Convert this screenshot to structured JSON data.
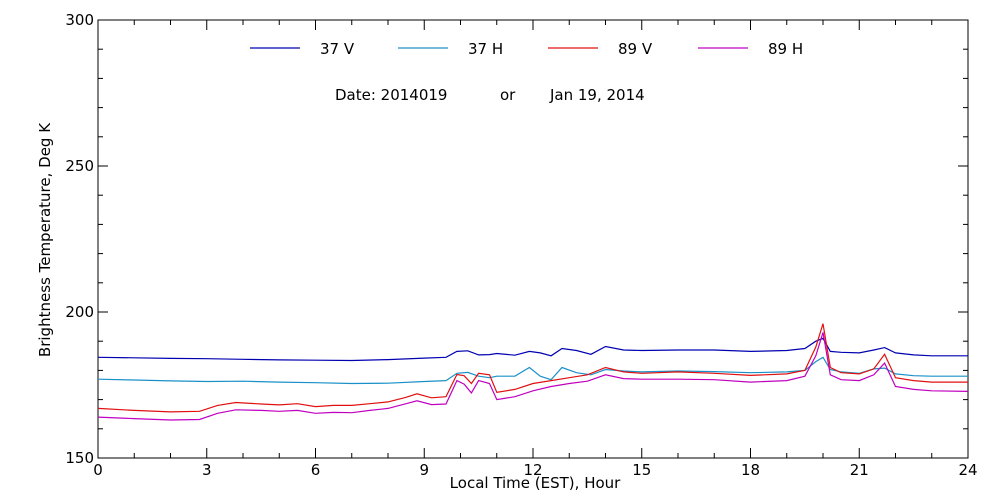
{
  "chart_data": {
    "type": "line",
    "annotations": {
      "date_code": "Date: 2014019",
      "or": "or",
      "date_text": "Jan 19, 2014"
    },
    "xlabel": "Local Time (EST), Hour",
    "ylabel": "Brightness Temperature, Deg K",
    "xlim": [
      0,
      24
    ],
    "ylim": [
      150,
      300
    ],
    "xticks": [
      0,
      3,
      6,
      9,
      12,
      15,
      18,
      21,
      24
    ],
    "yticks": [
      150,
      200,
      250,
      300
    ],
    "grid": false,
    "legend_position": "top-center",
    "series": [
      {
        "name": "37 V",
        "color": "#0000b0",
        "x": [
          0,
          1,
          2,
          3,
          4,
          5,
          6,
          7,
          8,
          9,
          9.6,
          9.9,
          10.2,
          10.5,
          10.8,
          11,
          11.5,
          11.9,
          12.2,
          12.5,
          12.8,
          13.2,
          13.6,
          14,
          14.5,
          15,
          16,
          17,
          18,
          19,
          19.5,
          19.8,
          20,
          20.2,
          20.5,
          21,
          21.4,
          21.7,
          22,
          22.5,
          23,
          24
        ],
        "y": [
          184.5,
          184.3,
          184.1,
          184.0,
          183.8,
          183.6,
          183.5,
          183.4,
          183.7,
          184.2,
          184.5,
          186.5,
          186.7,
          185.3,
          185.4,
          185.8,
          185.2,
          186.5,
          186.0,
          185.0,
          187.5,
          186.8,
          185.5,
          188.2,
          187.0,
          186.8,
          187.0,
          187.0,
          186.5,
          186.8,
          187.5,
          190.0,
          191.0,
          186.5,
          186.2,
          186.0,
          187.0,
          187.8,
          186.0,
          185.3,
          185.0,
          185.0
        ]
      },
      {
        "name": "37 H",
        "color": "#1a90c8",
        "x": [
          0,
          1,
          2,
          3,
          4,
          5,
          6,
          7,
          8,
          9,
          9.6,
          9.9,
          10.2,
          10.5,
          10.8,
          11,
          11.5,
          11.9,
          12.2,
          12.5,
          12.8,
          13.2,
          13.6,
          14,
          14.5,
          15,
          16,
          17,
          18,
          19,
          19.5,
          19.8,
          20,
          20.2,
          20.5,
          21,
          21.4,
          21.7,
          22,
          22.5,
          23,
          24
        ],
        "y": [
          177.0,
          176.7,
          176.4,
          176.2,
          176.3,
          176.0,
          175.8,
          175.5,
          175.6,
          176.2,
          176.5,
          179.0,
          179.3,
          178.0,
          177.5,
          178.0,
          178.0,
          181.0,
          178.0,
          176.8,
          181.0,
          179.2,
          178.5,
          180.3,
          179.8,
          179.5,
          179.8,
          179.6,
          179.2,
          179.5,
          180.0,
          183.0,
          184.5,
          180.3,
          179.5,
          179.0,
          180.5,
          180.8,
          178.8,
          178.2,
          178.0,
          178.0
        ]
      },
      {
        "name": "89 V",
        "color": "#e01010",
        "x": [
          0,
          1,
          2,
          2.8,
          3.3,
          3.8,
          4.5,
          5,
          5.5,
          6,
          6.5,
          7,
          7.5,
          8,
          8.5,
          8.8,
          9.2,
          9.6,
          9.9,
          10.1,
          10.3,
          10.5,
          10.8,
          11,
          11.5,
          12,
          12.5,
          13,
          13.5,
          14,
          14.5,
          15,
          16,
          17,
          18,
          19,
          19.5,
          19.8,
          20,
          20.2,
          20.5,
          21,
          21.4,
          21.7,
          22,
          22.5,
          23,
          24
        ],
        "y": [
          167.0,
          166.3,
          165.8,
          166.0,
          168.0,
          169.0,
          168.5,
          168.2,
          168.6,
          167.6,
          168.0,
          168.0,
          168.6,
          169.2,
          170.8,
          172.0,
          170.6,
          171.0,
          178.6,
          178.2,
          175.5,
          179.0,
          178.5,
          172.5,
          173.5,
          175.5,
          176.5,
          177.5,
          178.5,
          181.0,
          179.5,
          179.0,
          179.5,
          179.0,
          178.3,
          178.8,
          180.0,
          188.0,
          196.0,
          181.0,
          179.2,
          178.8,
          180.5,
          185.5,
          177.5,
          176.5,
          176.0,
          176.0
        ]
      },
      {
        "name": "89 H",
        "color": "#c000c0",
        "x": [
          0,
          1,
          2,
          2.8,
          3.3,
          3.8,
          4.5,
          5,
          5.5,
          6,
          6.5,
          7,
          7.5,
          8,
          8.5,
          8.8,
          9.2,
          9.6,
          9.9,
          10.1,
          10.3,
          10.5,
          10.8,
          11,
          11.5,
          12,
          12.5,
          13,
          13.5,
          14,
          14.5,
          15,
          16,
          17,
          18,
          19,
          19.5,
          19.8,
          20,
          20.2,
          20.5,
          21,
          21.4,
          21.7,
          22,
          22.5,
          23,
          24
        ],
        "y": [
          164.0,
          163.5,
          163.0,
          163.2,
          165.3,
          166.5,
          166.3,
          166.0,
          166.3,
          165.3,
          165.6,
          165.5,
          166.3,
          167.0,
          168.6,
          169.6,
          168.3,
          168.5,
          176.5,
          175.3,
          172.3,
          176.5,
          175.5,
          170.0,
          171.0,
          173.0,
          174.5,
          175.5,
          176.3,
          178.5,
          177.2,
          177.0,
          177.0,
          176.8,
          176.0,
          176.5,
          178.0,
          185.0,
          193.0,
          178.5,
          176.8,
          176.5,
          178.5,
          182.5,
          174.5,
          173.5,
          173.0,
          172.8
        ]
      }
    ]
  }
}
